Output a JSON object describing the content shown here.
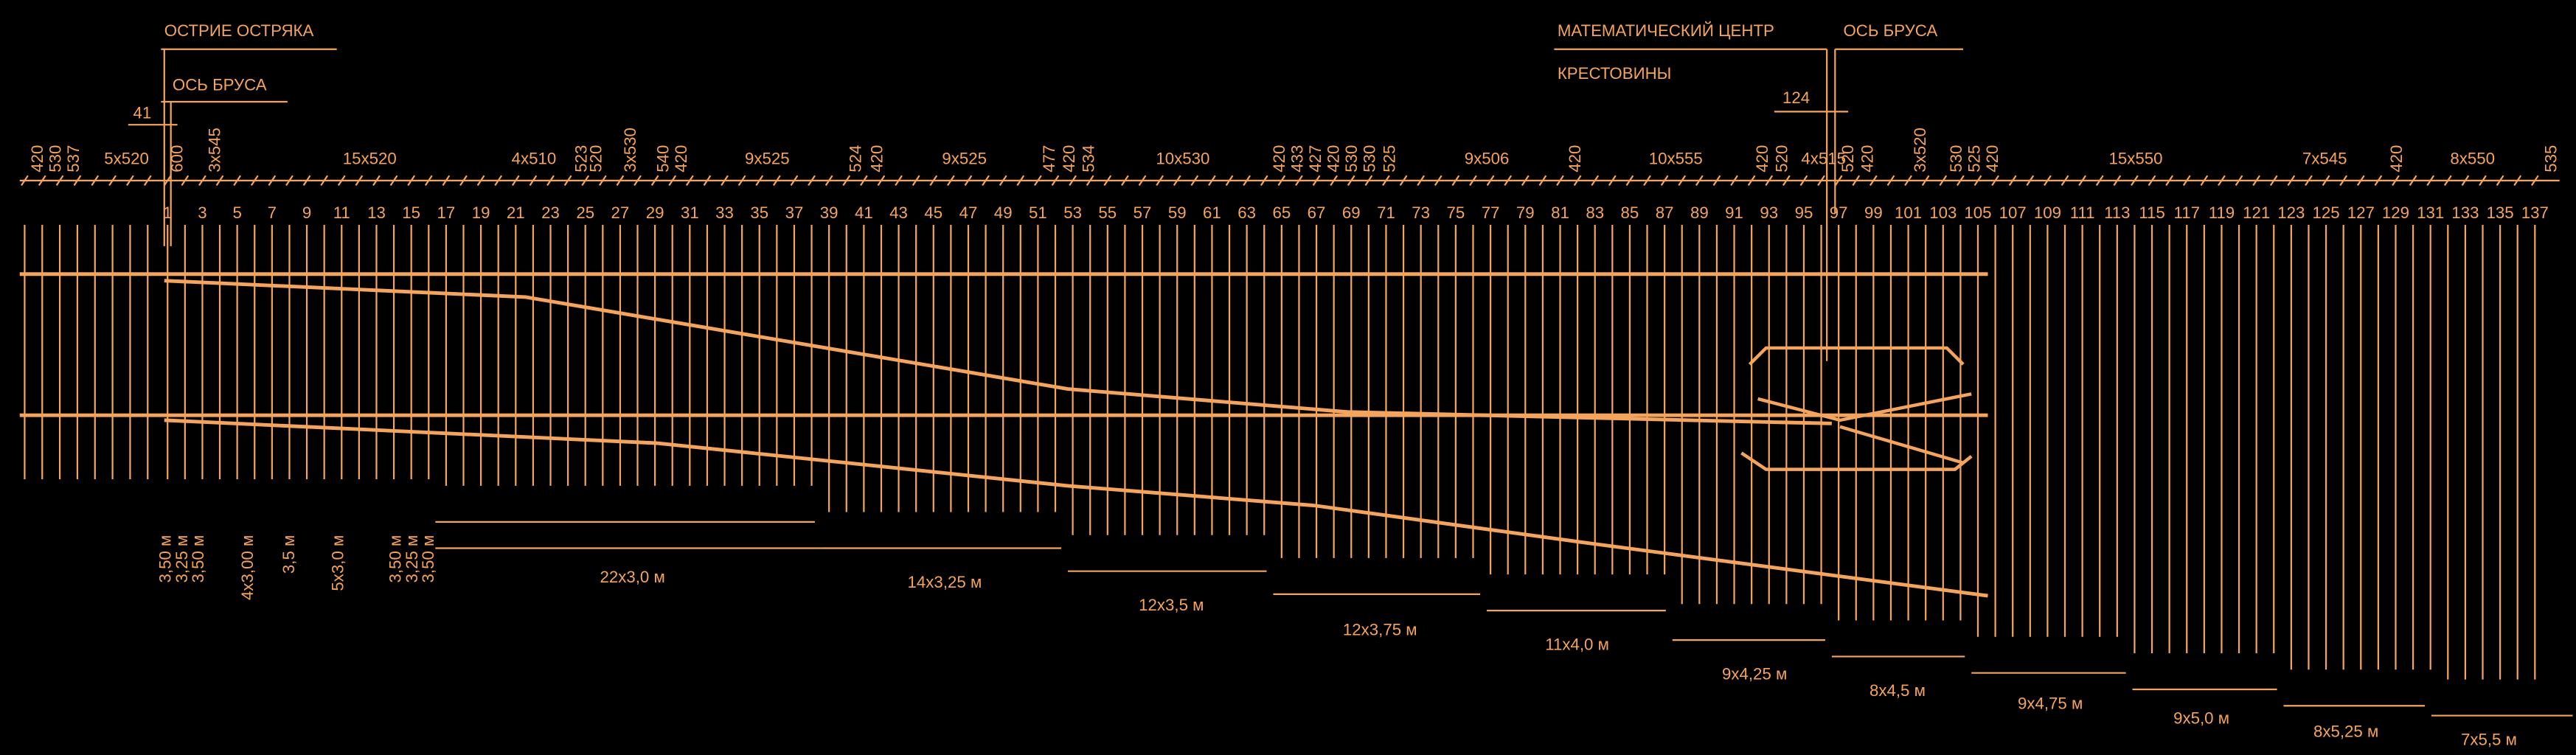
{
  "labels": {
    "switch_point": "ОСТРИЕ ОСТРЯКА",
    "sleeper_axis_left": "ОСЬ БРУСА",
    "math_center_1": "МАТЕМАТИЧЕСКИЙ ЦЕНТР",
    "math_center_2": "КРЕСТОВИНЫ",
    "sleeper_axis_right": "ОСЬ БРУСА",
    "offset_left": "41",
    "offset_right": "124"
  },
  "spacing": [
    "420",
    "530",
    "537",
    "5x520",
    "600",
    "3x545",
    "15x520",
    "4x510",
    "523",
    "520",
    "3x530",
    "540",
    "420",
    "9x525",
    "524",
    "420",
    "9x525",
    "477",
    "420",
    "534",
    "10x530",
    "420",
    "433",
    "427",
    "420",
    "530",
    "530",
    "525",
    "9x506",
    "420",
    "10x555",
    "420",
    "520",
    "4x515",
    "520",
    "420",
    "3x520",
    "530",
    "525",
    "420",
    "15x550",
    "7x545",
    "420",
    "8x550",
    "535"
  ],
  "sleeper_numbers": [
    "1",
    "3",
    "5",
    "7",
    "9",
    "11",
    "13",
    "15",
    "17",
    "19",
    "21",
    "23",
    "25",
    "27",
    "29",
    "31",
    "33",
    "35",
    "37",
    "39",
    "41",
    "43",
    "45",
    "47",
    "49",
    "51",
    "53",
    "55",
    "57",
    "59",
    "61",
    "63",
    "65",
    "67",
    "69",
    "71",
    "73",
    "75",
    "77",
    "79",
    "81",
    "83",
    "85",
    "87",
    "89",
    "91",
    "93",
    "95",
    "97",
    "99",
    "101",
    "103",
    "105",
    "107",
    "109",
    "111",
    "113",
    "115",
    "117",
    "119",
    "121",
    "123",
    "125",
    "127",
    "129",
    "131",
    "133",
    "135",
    "137"
  ],
  "lengths": [
    "3,50 м",
    "3,25 м",
    "3,50 м",
    "4x3,00 м",
    "3,5 м",
    "5x3,0 м",
    "3,50 м",
    "3,25 м",
    "3,50 м",
    "22x3,0 м",
    "14x3,25 м",
    "12x3,5 м",
    "12x3,75 м",
    "11x4,0 м",
    "9x4,25 м",
    "8x4,5 м",
    "9x4,75 м",
    "9x5,0 м",
    "8x5,25 м",
    "7x5,5 м"
  ]
}
